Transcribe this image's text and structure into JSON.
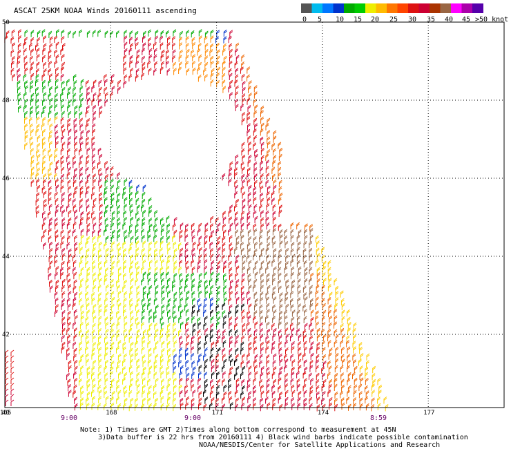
{
  "title": "ASCAT 25KM NOAA Winds 20160111 ascending",
  "colorbar": {
    "colors": [
      "#555555",
      "#00bbee",
      "#0077ff",
      "#0033cc",
      "#00aa00",
      "#00cc00",
      "#eeee00",
      "#ffbb00",
      "#ff7700",
      "#ff4400",
      "#dd1111",
      "#cc0033",
      "#aa3300",
      "#996644",
      "#ff00ff",
      "#aa00aa",
      "#5500aa"
    ],
    "labels": [
      "0",
      "5",
      "10",
      "15",
      "20",
      "25",
      "30",
      "35",
      "40",
      "45",
      ">50 knots"
    ]
  },
  "map": {
    "lat_labels": [
      "50",
      "48",
      "46",
      "44",
      "42",
      "40"
    ],
    "lon_labels": [
      "165",
      "168",
      "171",
      "174",
      "177"
    ],
    "time_labels": [
      "9:00",
      "9:00",
      "8:59"
    ]
  },
  "notes": {
    "line1": "Note: 1) Times are GMT 2)Times along bottom correspond to measurement at 45N",
    "line2": "3)Data buffer is 22 hrs from 20160111 4) Black wind barbs indicate possible contamination",
    "line3": "NOAA/NESDIS/Center for Satellite Applications and Research"
  },
  "wind_barbs": {
    "regions": [
      {
        "area": "north-west",
        "speed_kt": 20,
        "color": "#00aa00"
      },
      {
        "area": "north",
        "speed_kt": 25,
        "color": "#eeee00"
      },
      {
        "area": "north-central",
        "speed_kt": 30,
        "color": "#dd1111"
      },
      {
        "area": "east swath edge",
        "speed_kt": 35,
        "color": "#ff7700"
      },
      {
        "area": "central",
        "speed_kt": 30,
        "color": "#cc0033"
      },
      {
        "area": "west-central",
        "speed_kt": 20,
        "color": "#00aa00"
      },
      {
        "area": "south-central",
        "speed_kt": 40,
        "color": "#996644"
      },
      {
        "area": "south-west",
        "speed_kt": 25,
        "color": "#ffbb00"
      },
      {
        "area": "contaminated",
        "speed_kt": 20,
        "color": "#000000"
      },
      {
        "area": "low wind pockets",
        "speed_kt": 15,
        "color": "#0033cc"
      }
    ]
  }
}
